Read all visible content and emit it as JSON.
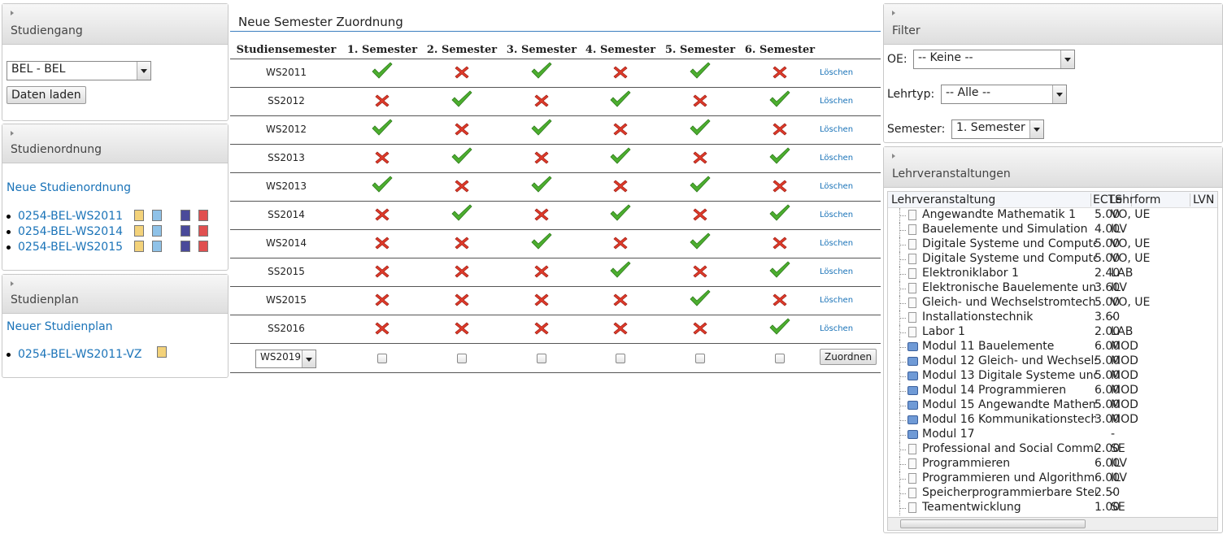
{
  "studiengang": {
    "title": "Studiengang",
    "select": "BEL - BEL",
    "button": "Daten laden"
  },
  "studienordnung": {
    "title": "Studienordnung",
    "link": "Neue Studienordnung",
    "items": [
      "0254-BEL-WS2011",
      "0254-BEL-WS2014",
      "0254-BEL-WS2015"
    ]
  },
  "studienplan": {
    "title": "Studienplan",
    "link": "Neuer Studienplan",
    "items": [
      "0254-BEL-WS2011-VZ"
    ]
  },
  "zuordnung": {
    "title": "Neue Semester Zuordnung",
    "headers": [
      "Studiensemester",
      "1. Semester",
      "2. Semester",
      "3. Semester",
      "4. Semester",
      "5. Semester",
      "6. Semester"
    ],
    "action": "Löschen",
    "rows": [
      {
        "semester": "WS2011",
        "assigned": [
          true,
          false,
          true,
          false,
          true,
          false
        ]
      },
      {
        "semester": "SS2012",
        "assigned": [
          false,
          true,
          false,
          true,
          false,
          true
        ]
      },
      {
        "semester": "WS2012",
        "assigned": [
          true,
          false,
          true,
          false,
          true,
          false
        ]
      },
      {
        "semester": "SS2013",
        "assigned": [
          false,
          true,
          false,
          true,
          false,
          true
        ]
      },
      {
        "semester": "WS2013",
        "assigned": [
          true,
          false,
          true,
          false,
          true,
          false
        ]
      },
      {
        "semester": "SS2014",
        "assigned": [
          false,
          true,
          false,
          true,
          false,
          true
        ]
      },
      {
        "semester": "WS2014",
        "assigned": [
          false,
          false,
          true,
          false,
          true,
          false
        ]
      },
      {
        "semester": "SS2015",
        "assigned": [
          false,
          false,
          false,
          true,
          false,
          true
        ]
      },
      {
        "semester": "WS2015",
        "assigned": [
          false,
          false,
          false,
          false,
          true,
          false
        ]
      },
      {
        "semester": "SS2016",
        "assigned": [
          false,
          false,
          false,
          false,
          false,
          true
        ]
      }
    ],
    "new_select": "WS2019",
    "new_button": "Zuordnen"
  },
  "filter": {
    "title": "Filter",
    "fields": [
      {
        "label": "OE:",
        "value": "-- Keine --"
      },
      {
        "label": "Lehrtyp:",
        "value": "-- Alle --"
      },
      {
        "label": "Semester:",
        "value": "1. Semester"
      }
    ]
  },
  "lehrveranstaltungen": {
    "title": "Lehrveranstaltungen",
    "columns": [
      "Lehrveranstaltung",
      "ECTS",
      "Lehrform",
      "LVN"
    ],
    "rows": [
      {
        "name": "Angewandte Mathematik 1",
        "ects": "5.00",
        "form": "VO, UE",
        "module": false
      },
      {
        "name": "Bauelemente und Simulation",
        "ects": "4.00",
        "form": "ILV",
        "module": false
      },
      {
        "name": "Digitale Systeme und Compute",
        "ects": "5.00",
        "form": "VO, UE",
        "module": false
      },
      {
        "name": "Digitale Systeme und Compute",
        "ects": "5.00",
        "form": "VO, UE",
        "module": false
      },
      {
        "name": "Elektroniklabor 1",
        "ects": "2.40",
        "form": "LAB",
        "module": false
      },
      {
        "name": "Elektronische Bauelemente und",
        "ects": "3.60",
        "form": "ILV",
        "module": false
      },
      {
        "name": "Gleich- und Wechselstromtech",
        "ects": "5.00",
        "form": "VO, UE",
        "module": false
      },
      {
        "name": "Installationstechnik",
        "ects": "3.60",
        "form": "-",
        "module": false
      },
      {
        "name": "Labor 1",
        "ects": "2.00",
        "form": "LAB",
        "module": false
      },
      {
        "name": "Modul 11 Bauelemente",
        "ects": "6.00",
        "form": "MOD",
        "module": true
      },
      {
        "name": "Modul 12 Gleich- und Wechsels",
        "ects": "5.00",
        "form": "MOD",
        "module": true
      },
      {
        "name": "Modul 13 Digitale Systeme und",
        "ects": "5.00",
        "form": "MOD",
        "module": true
      },
      {
        "name": "Modul 14 Programmieren",
        "ects": "6.00",
        "form": "MOD",
        "module": true
      },
      {
        "name": "Modul 15 Angewandte Mathem",
        "ects": "5.00",
        "form": "MOD",
        "module": true
      },
      {
        "name": "Modul 16 Kommunikationstech",
        "ects": "3.00",
        "form": "MOD",
        "module": true
      },
      {
        "name": "Modul 17",
        "ects": null,
        "form": "-",
        "module": true
      },
      {
        "name": "Professional and Social Commu",
        "ects": "2.00",
        "form": "SE",
        "module": false
      },
      {
        "name": "Programmieren",
        "ects": "6.00",
        "form": "ILV",
        "module": false
      },
      {
        "name": "Programmieren und Algorithme",
        "ects": "6.00",
        "form": "ILV",
        "module": false
      },
      {
        "name": "Speicherprogrammierbare Steu",
        "ects": "2.50",
        "form": "-",
        "module": false
      },
      {
        "name": "Teamentwicklung",
        "ects": "1.00",
        "form": "SE",
        "module": false
      }
    ]
  }
}
